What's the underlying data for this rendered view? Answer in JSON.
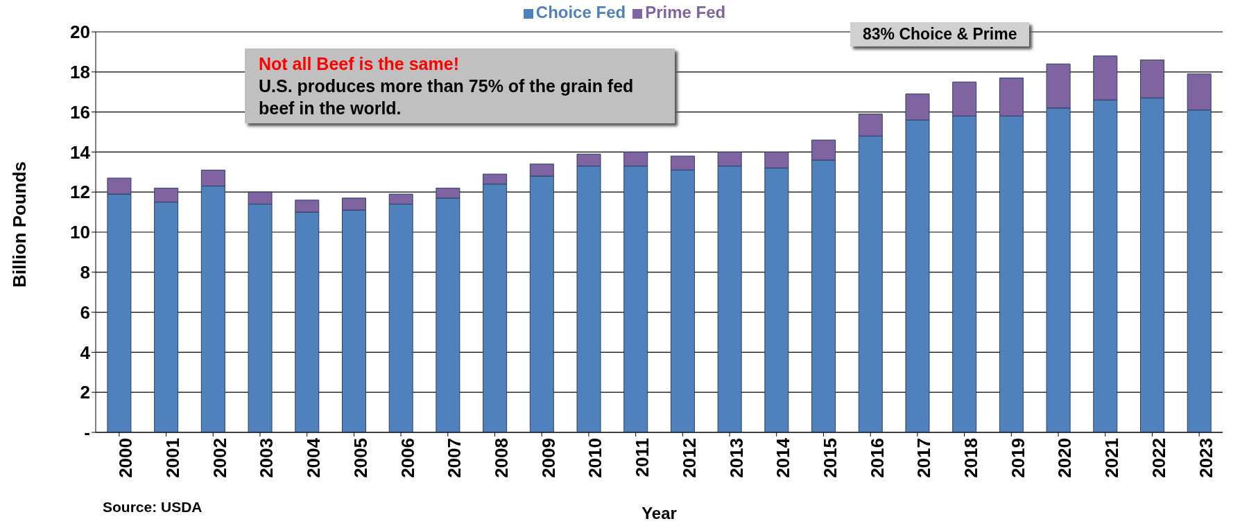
{
  "chart_data": {
    "type": "bar",
    "stacked": true,
    "xlabel": "Year",
    "ylabel": "Billion Pounds",
    "categories": [
      "2000",
      "2001",
      "2002",
      "2003",
      "2004",
      "2005",
      "2006",
      "2007",
      "2008",
      "2009",
      "2010",
      "2011",
      "2012",
      "2013",
      "2014",
      "2015",
      "2016",
      "2017",
      "2018",
      "2019",
      "2020",
      "2021",
      "2022",
      "2023"
    ],
    "series": [
      {
        "name": "Choice Fed",
        "color": "#4f81bd",
        "values": [
          11.9,
          11.5,
          12.3,
          11.4,
          11.0,
          11.1,
          11.4,
          11.7,
          12.4,
          12.8,
          13.3,
          13.3,
          13.1,
          13.3,
          13.2,
          13.6,
          14.8,
          15.6,
          15.8,
          15.8,
          16.2,
          16.6,
          16.7,
          16.1
        ]
      },
      {
        "name": "Prime Fed",
        "color": "#8064a2",
        "values": [
          0.8,
          0.7,
          0.8,
          0.6,
          0.6,
          0.6,
          0.5,
          0.5,
          0.5,
          0.6,
          0.6,
          0.7,
          0.7,
          0.7,
          0.8,
          1.0,
          1.1,
          1.3,
          1.7,
          1.9,
          2.2,
          2.2,
          1.9,
          1.8
        ]
      }
    ],
    "ylim": [
      0,
      20
    ],
    "yticks": [
      {
        "value": 0,
        "label": "-"
      },
      2,
      4,
      6,
      8,
      10,
      12,
      14,
      16,
      18,
      20
    ],
    "grid": "y",
    "legend": "top",
    "annotations": [
      "Not all Beef is the same!",
      "U.S. produces more than 75% of the grain fed beef in the world.",
      "83% Choice & Prime",
      "Source: USDA"
    ]
  }
}
